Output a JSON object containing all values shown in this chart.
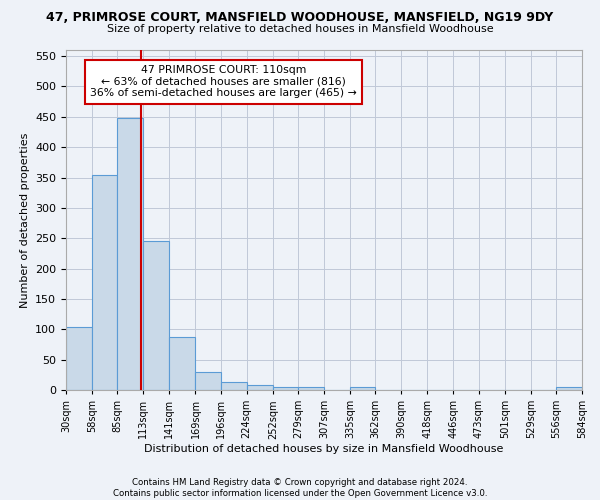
{
  "title": "47, PRIMROSE COURT, MANSFIELD WOODHOUSE, MANSFIELD, NG19 9DY",
  "subtitle": "Size of property relative to detached houses in Mansfield Woodhouse",
  "xlabel": "Distribution of detached houses by size in Mansfield Woodhouse",
  "ylabel": "Number of detached properties",
  "footer_line1": "Contains HM Land Registry data © Crown copyright and database right 2024.",
  "footer_line2": "Contains public sector information licensed under the Open Government Licence v3.0.",
  "bin_edges": [
    30,
    58,
    85,
    113,
    141,
    169,
    196,
    224,
    252,
    279,
    307,
    335,
    362,
    390,
    418,
    446,
    473,
    501,
    529,
    556,
    584
  ],
  "bin_heights": [
    103,
    354,
    448,
    245,
    88,
    30,
    13,
    9,
    5,
    5,
    0,
    5,
    0,
    0,
    0,
    0,
    0,
    0,
    0,
    5
  ],
  "bar_facecolor": "#c9d9e8",
  "bar_edgecolor": "#5b9bd5",
  "grid_color": "#c0c8d8",
  "bg_color": "#eef2f8",
  "property_size": 110,
  "red_line_color": "#cc0000",
  "annotation_line1": "47 PRIMROSE COURT: 110sqm",
  "annotation_line2": "← 63% of detached houses are smaller (816)",
  "annotation_line3": "36% of semi-detached houses are larger (465) →",
  "annotation_box_color": "#ffffff",
  "annotation_box_edgecolor": "#cc0000",
  "ylim": [
    0,
    560
  ],
  "yticks": [
    0,
    50,
    100,
    150,
    200,
    250,
    300,
    350,
    400,
    450,
    500,
    550
  ]
}
